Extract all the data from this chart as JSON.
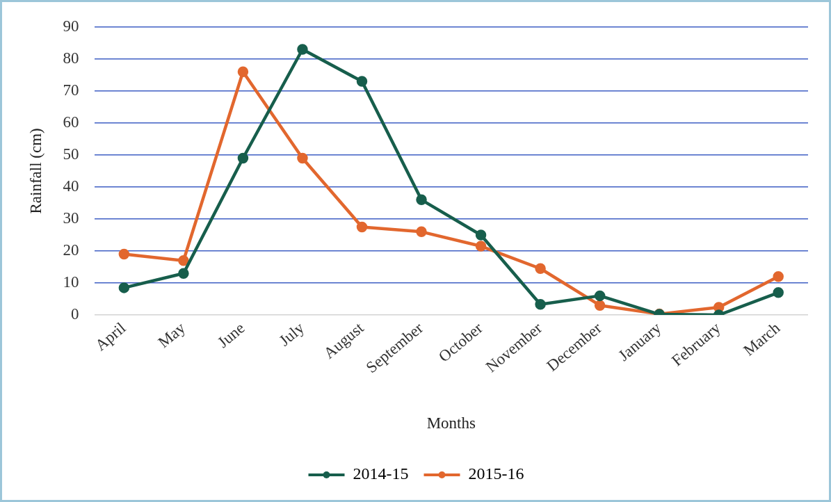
{
  "chart_data": {
    "type": "line",
    "xlabel": "Months",
    "ylabel": "Rainfall (cm)",
    "categories": [
      "April",
      "May",
      "June",
      "July",
      "August",
      "September",
      "October",
      "November",
      "December",
      "January",
      "February",
      "March"
    ],
    "series": [
      {
        "name": "2014-15",
        "color": "#175e4c",
        "values": [
          8.5,
          13,
          49,
          83,
          73,
          36,
          25,
          3.3,
          6,
          0.2,
          0,
          7
        ]
      },
      {
        "name": "2015-16",
        "color": "#e2672e",
        "values": [
          19,
          17,
          76,
          49,
          27.5,
          26,
          21.5,
          14.5,
          3,
          0.3,
          2.4,
          12
        ]
      }
    ],
    "ylim": [
      0,
      90
    ],
    "yticks": [
      0,
      10,
      20,
      30,
      40,
      50,
      60,
      70,
      80,
      90
    ],
    "grid": "y",
    "legend": "bottom",
    "marker": "circle",
    "line_style": "solid"
  }
}
